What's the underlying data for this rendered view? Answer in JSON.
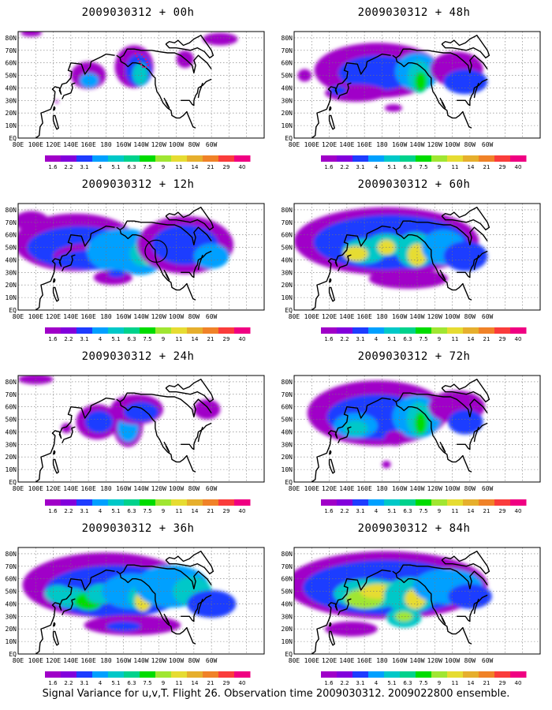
{
  "panels": [
    {
      "title": "2009030312 + 00h",
      "hour": 0
    },
    {
      "title": "2009030312 + 48h",
      "hour": 48
    },
    {
      "title": "2009030312 + 12h",
      "hour": 12
    },
    {
      "title": "2009030312 + 60h",
      "hour": 60
    },
    {
      "title": "2009030312 + 24h",
      "hour": 24
    },
    {
      "title": "2009030312 + 72h",
      "hour": 72
    },
    {
      "title": "2009030312 + 36h",
      "hour": 36
    },
    {
      "title": "2009030312 + 84h",
      "hour": 84
    }
  ],
  "lat_labels": [
    "80N",
    "70N",
    "60N",
    "50N",
    "40N",
    "30N",
    "20N",
    "10N",
    "EQ"
  ],
  "lon_labels": [
    "80E",
    "100E",
    "120E",
    "140E",
    "160E",
    "180",
    "160W",
    "140W",
    "120W",
    "100W",
    "80W",
    "60W"
  ],
  "colorbar": {
    "labels": [
      "1.6",
      "2.2",
      "3.1",
      "4",
      "5.1",
      "6.3",
      "7.5",
      "9",
      "11",
      "14",
      "21",
      "29",
      "40"
    ],
    "colors": [
      "#a000c8",
      "#8200dc",
      "#1e3cff",
      "#00a0ff",
      "#00c8c8",
      "#00d28c",
      "#00dc00",
      "#a0e632",
      "#e6dc32",
      "#e6af2d",
      "#f08228",
      "#fa3c3c",
      "#f00082"
    ]
  },
  "footer": "Signal Variance for u,v,T. Flight 26. Observation time 2009030312. 2009022800 ensemble."
}
